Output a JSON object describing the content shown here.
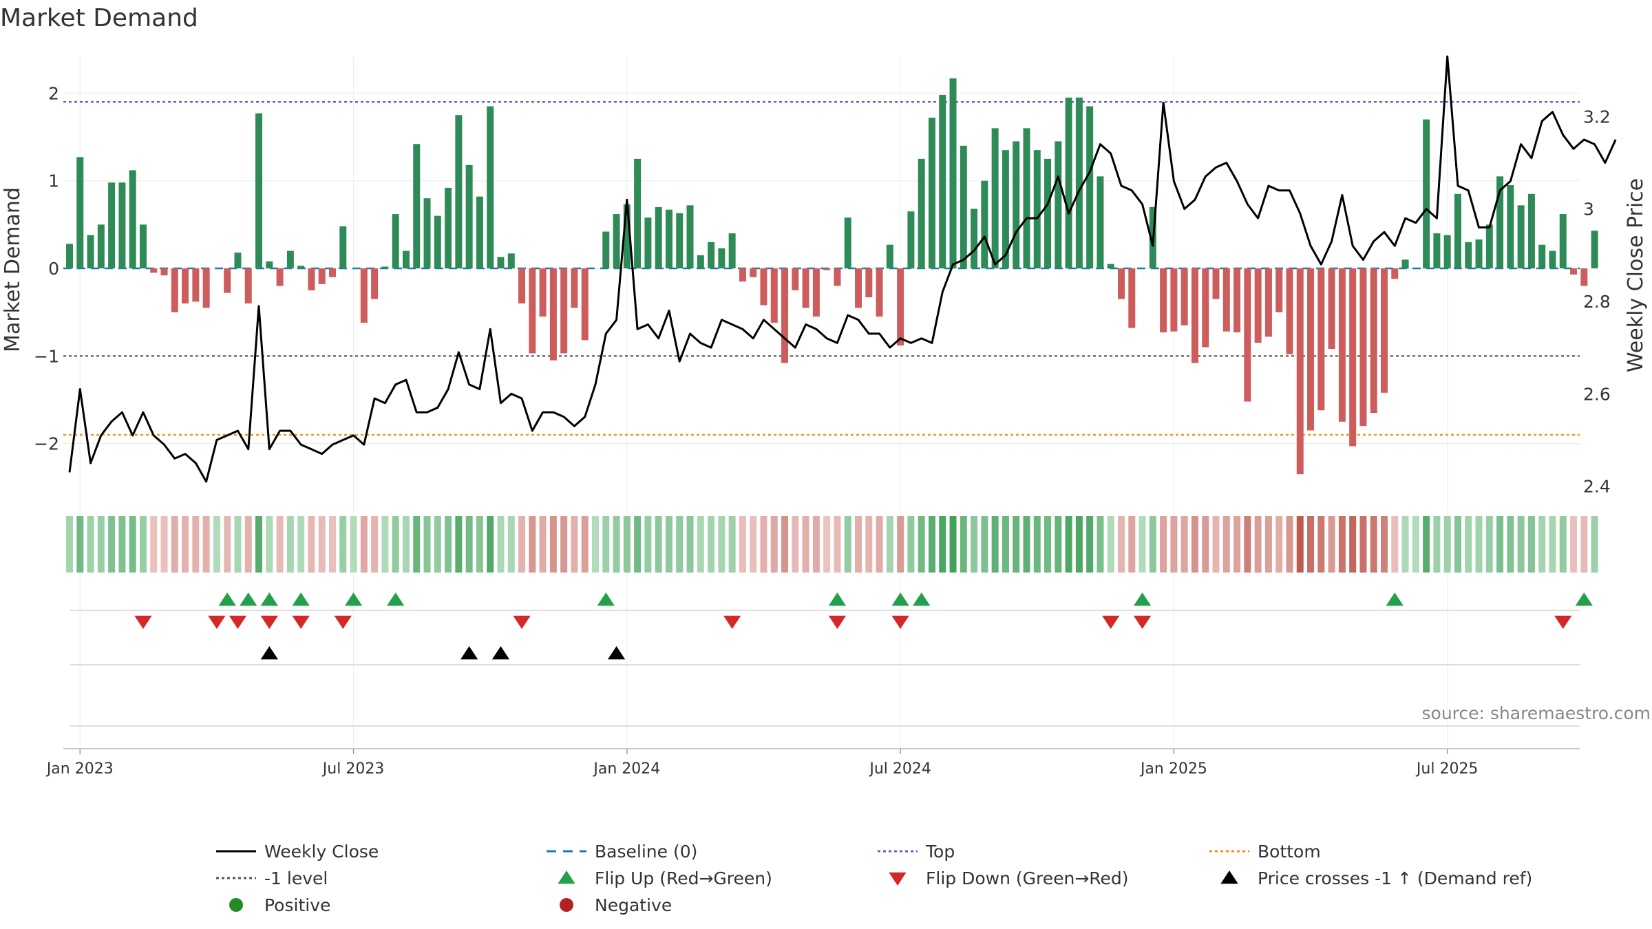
{
  "chart_data": {
    "type": "bar",
    "title": "Market Demand",
    "source": "source: sharemaestro.com",
    "left_axis": {
      "label": "Market Demand",
      "range": [
        -2.55,
        2.45
      ],
      "ticks": [
        2,
        1,
        0,
        -1,
        -2
      ],
      "tick_labels": [
        "2",
        "1",
        "0",
        "−1",
        "−2"
      ]
    },
    "right_axis": {
      "label": "Weekly Close Price",
      "range": [
        2.38,
        3.33
      ],
      "ticks": [
        3.2,
        3.0,
        2.8,
        2.6,
        2.4
      ],
      "tick_labels": [
        "3.2",
        "3",
        "2.8",
        "2.6",
        "2.4"
      ]
    },
    "x_ticks": [
      {
        "label": "Jan 2023",
        "week": 1
      },
      {
        "label": "Jul 2023",
        "week": 27
      },
      {
        "label": "Jan 2024",
        "week": 53
      },
      {
        "label": "Jul 2024",
        "week": 79
      },
      {
        "label": "Jan 2025",
        "week": 105
      },
      {
        "label": "Jul 2025",
        "week": 131
      }
    ],
    "reference_lines": {
      "top": 1.9,
      "bottom": -1.9,
      "minus_one_level": -1,
      "baseline": 0
    },
    "demand": [
      0.28,
      1.27,
      0.38,
      0.5,
      0.98,
      0.98,
      1.12,
      0.5,
      -0.05,
      -0.08,
      -0.5,
      -0.4,
      -0.38,
      -0.45,
      0.0,
      -0.28,
      0.18,
      -0.4,
      1.77,
      0.08,
      -0.2,
      0.2,
      0.03,
      -0.25,
      -0.18,
      -0.1,
      0.48,
      0.0,
      -0.62,
      -0.35,
      0.02,
      0.62,
      0.2,
      1.42,
      0.8,
      0.6,
      0.92,
      1.75,
      1.18,
      0.82,
      1.85,
      0.13,
      0.17,
      -0.4,
      -0.97,
      -0.55,
      -1.05,
      -0.97,
      -0.45,
      -0.82,
      0.0,
      0.42,
      0.62,
      0.73,
      1.25,
      0.58,
      0.7,
      0.67,
      0.63,
      0.72,
      0.15,
      0.3,
      0.23,
      0.4,
      -0.15,
      -0.1,
      -0.42,
      -0.62,
      -1.08,
      -0.25,
      -0.45,
      -0.55,
      -0.02,
      -0.2,
      0.58,
      -0.45,
      -0.33,
      -0.55,
      0.27,
      -0.88,
      0.65,
      1.25,
      1.72,
      1.98,
      2.17,
      1.4,
      0.68,
      1.0,
      1.6,
      1.35,
      1.45,
      1.6,
      1.35,
      1.25,
      1.45,
      1.95,
      1.95,
      1.85,
      1.05,
      0.05,
      -0.35,
      -0.68,
      0.0,
      0.7,
      -0.73,
      -0.72,
      -0.65,
      -1.08,
      -0.9,
      -0.35,
      -0.72,
      -0.73,
      -1.52,
      -0.85,
      -0.78,
      -0.5,
      -0.98,
      -2.35,
      -1.85,
      -1.62,
      -0.92,
      -1.75,
      -2.03,
      -1.8,
      -1.65,
      -1.42,
      -0.12,
      0.1,
      0.0,
      1.7,
      0.4,
      0.38,
      0.85,
      0.3,
      0.33,
      0.5,
      1.05,
      0.95,
      0.72,
      0.85,
      0.27,
      0.2,
      0.62,
      -0.07,
      -0.2,
      0.43
    ],
    "weekly_close": [
      2.43,
      2.61,
      2.45,
      2.51,
      2.54,
      2.56,
      2.51,
      2.56,
      2.51,
      2.49,
      2.46,
      2.47,
      2.45,
      2.41,
      2.5,
      2.51,
      2.52,
      2.48,
      2.79,
      2.48,
      2.52,
      2.52,
      2.49,
      2.48,
      2.47,
      2.49,
      2.5,
      2.51,
      2.49,
      2.59,
      2.58,
      2.62,
      2.63,
      2.56,
      2.56,
      2.57,
      2.61,
      2.69,
      2.62,
      2.61,
      2.74,
      2.58,
      2.6,
      2.59,
      2.52,
      2.56,
      2.56,
      2.55,
      2.53,
      2.55,
      2.62,
      2.73,
      2.76,
      3.02,
      2.74,
      2.75,
      2.72,
      2.78,
      2.67,
      2.73,
      2.71,
      2.7,
      2.76,
      2.75,
      2.74,
      2.72,
      2.76,
      2.74,
      2.72,
      2.7,
      2.75,
      2.74,
      2.72,
      2.71,
      2.77,
      2.76,
      2.73,
      2.73,
      2.7,
      2.72,
      2.71,
      2.72,
      2.71,
      2.82,
      2.88,
      2.89,
      2.91,
      2.94,
      2.88,
      2.9,
      2.95,
      2.98,
      2.98,
      3.01,
      3.07,
      2.99,
      3.04,
      3.08,
      3.14,
      3.12,
      3.05,
      3.04,
      3.01,
      2.92,
      3.23,
      3.06,
      3.0,
      3.02,
      3.07,
      3.09,
      3.1,
      3.06,
      3.01,
      2.98,
      3.05,
      3.04,
      3.04,
      2.99,
      2.92,
      2.88,
      2.93,
      3.03,
      2.92,
      2.89,
      2.93,
      2.95,
      2.92,
      2.98,
      2.97,
      3.0,
      2.98,
      3.33,
      3.05,
      3.04,
      2.96,
      2.96,
      3.04,
      3.06,
      3.14,
      3.11,
      3.19,
      3.21,
      3.16,
      3.13,
      3.15,
      3.14,
      3.1,
      3.15
    ],
    "flip_up_weeks": [
      15,
      17,
      19,
      22,
      27,
      31,
      51,
      73,
      79,
      81,
      102,
      126,
      144
    ],
    "flip_down_weeks": [
      7,
      14,
      16,
      19,
      22,
      26,
      43,
      63,
      73,
      79,
      99,
      102,
      142
    ],
    "price_cross_weeks": [
      19,
      38,
      41,
      52
    ],
    "legend": [
      {
        "label": "Weekly Close",
        "kind": "line-solid",
        "color": "#000000"
      },
      {
        "label": "Baseline (0)",
        "kind": "line-dash",
        "color": "#1f77b4"
      },
      {
        "label": "Top",
        "kind": "line-dot",
        "color": "#6a5acd"
      },
      {
        "label": "Bottom",
        "kind": "line-dot",
        "color": "#ff8c00"
      },
      {
        "label": "-1 level",
        "kind": "line-dot",
        "color": "#555555"
      },
      {
        "label": "Flip Up (Red→Green)",
        "kind": "tri-up",
        "color": "#22a04a"
      },
      {
        "label": "Flip Down (Green→Red)",
        "kind": "tri-down",
        "color": "#d62728"
      },
      {
        "label": "Price crosses -1 ↑ (Demand ref)",
        "kind": "tri-up",
        "color": "#000000"
      },
      {
        "label": "Positive",
        "kind": "circle",
        "color": "#228b22"
      },
      {
        "label": "Negative",
        "kind": "circle",
        "color": "#b22222"
      }
    ],
    "colors": {
      "positive": "#2e8b57",
      "negative": "#cd5c5c",
      "line": "#000000",
      "top": "#6a5acd",
      "bottom": "#ff8c00",
      "level": "#555555",
      "baseline": "#1f77b4"
    }
  }
}
